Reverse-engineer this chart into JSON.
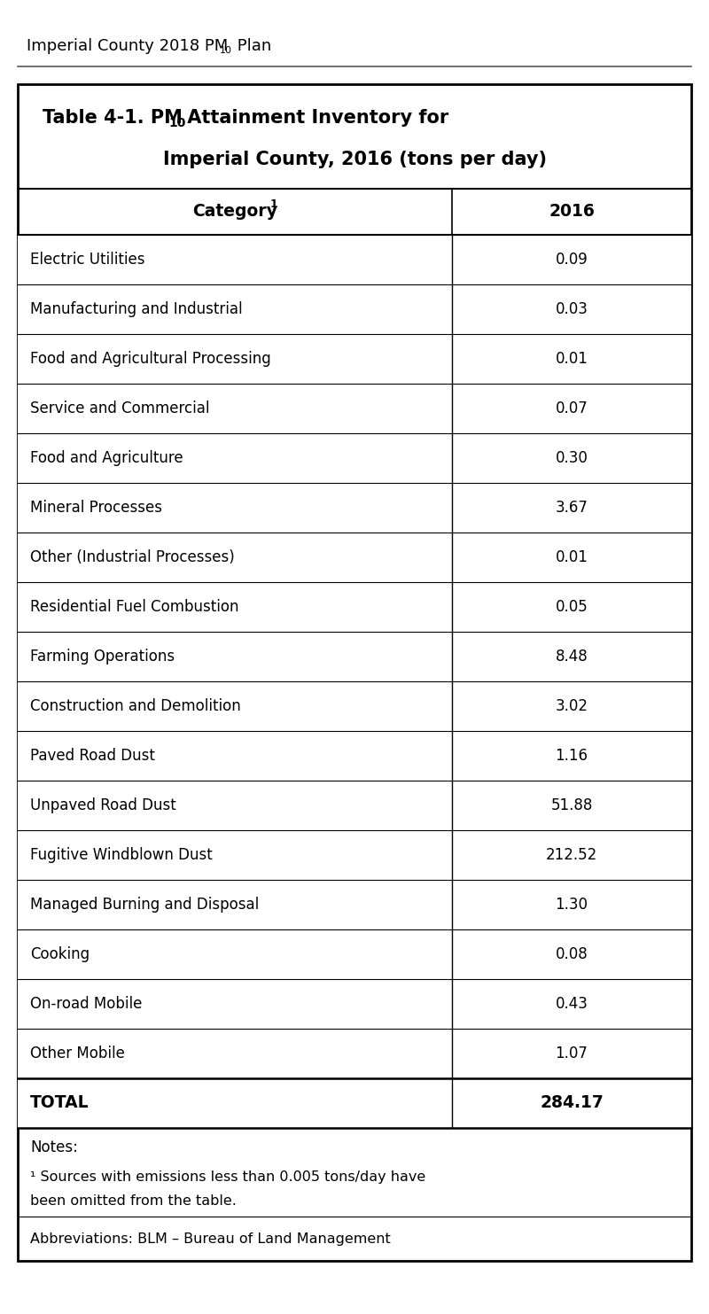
{
  "page_header": "Imperial County 2018 PM",
  "page_header_sub": "10",
  "page_header_suffix": " Plan",
  "table_title_line1": "Table 4-1. PM",
  "table_title_sub": "10",
  "table_title_line1_suffix": " Attainment Inventory for",
  "table_title_line2": "Imperial County, 2016 (tons per day)",
  "col1_header": "Category",
  "col1_header_sup": "1",
  "col2_header": "2016",
  "rows": [
    [
      "Electric Utilities",
      "0.09"
    ],
    [
      "Manufacturing and Industrial",
      "0.03"
    ],
    [
      "Food and Agricultural Processing",
      "0.01"
    ],
    [
      "Service and Commercial",
      "0.07"
    ],
    [
      "Food and Agriculture",
      "0.30"
    ],
    [
      "Mineral Processes",
      "3.67"
    ],
    [
      "Other (Industrial Processes)",
      "0.01"
    ],
    [
      "Residential Fuel Combustion",
      "0.05"
    ],
    [
      "Farming Operations",
      "8.48"
    ],
    [
      "Construction and Demolition",
      "3.02"
    ],
    [
      "Paved Road Dust",
      "1.16"
    ],
    [
      "Unpaved Road Dust",
      "51.88"
    ],
    [
      "Fugitive Windblown Dust",
      "212.52"
    ],
    [
      "Managed Burning and Disposal",
      "1.30"
    ],
    [
      "Cooking",
      "0.08"
    ],
    [
      "On-road Mobile",
      "0.43"
    ],
    [
      "Other Mobile",
      "1.07"
    ]
  ],
  "total_label": "TOTAL",
  "total_value": "284.17",
  "notes_title": "Notes:",
  "note1_line1": "¹ Sources with emissions less than 0.005 tons/day have",
  "note1_line2": "been omitted from the table.",
  "note2": "Abbreviations: BLM – Bureau of Land Management",
  "bg_color": "#ffffff",
  "border_color": "#000000",
  "text_color": "#000000",
  "fig_width": 8.0,
  "fig_height": 14.83
}
